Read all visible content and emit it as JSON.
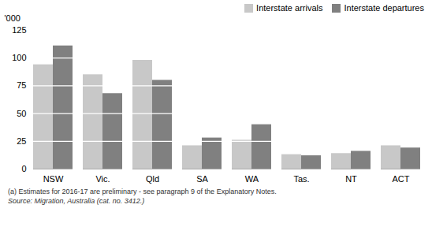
{
  "chart_data": {
    "type": "bar",
    "ylabel": "'000",
    "categories": [
      "NSW",
      "Vic.",
      "Qld",
      "SA",
      "WA",
      "Tas.",
      "NT",
      "ACT"
    ],
    "series": [
      {
        "name": "Interstate arrivals",
        "color": "#c8c8c8",
        "values": [
          94,
          85,
          98,
          21,
          26,
          13,
          14,
          21
        ]
      },
      {
        "name": "Interstate departures",
        "color": "#808080",
        "values": [
          111,
          68,
          80,
          28,
          40,
          12,
          16,
          19
        ]
      }
    ],
    "ylim": [
      0,
      125
    ],
    "yticks": [
      0,
      25,
      50,
      75,
      100,
      125
    ],
    "grid": true,
    "legend": "upper right",
    "annotations": [
      "(a) Estimates for 2016-17 are preliminary - see paragraph 9 of the Explanatory Notes.",
      "Source: Migration, Australia (cat. no. 3412.)"
    ]
  }
}
